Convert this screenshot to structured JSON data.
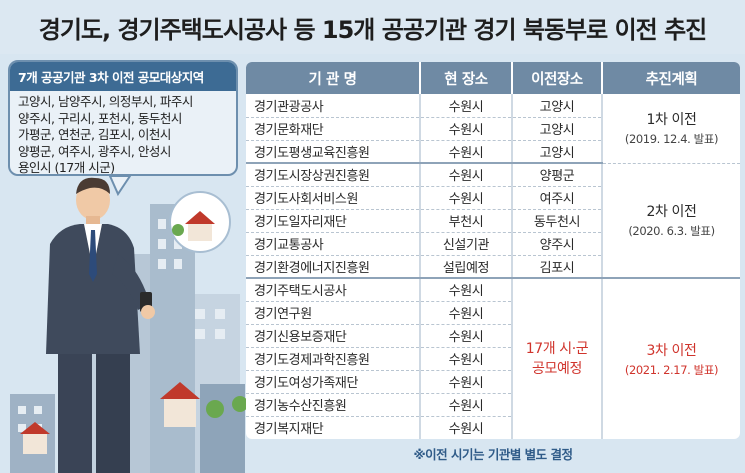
{
  "title": "경기도, 경기주택도시공사 등 15개 공공기관 경기 북동부로 이전 추진",
  "region_box": {
    "title": "7개 공공기관 3차 이전 공모대상지역",
    "lines": [
      "고양시, 남양주시, 의정부시, 파주시",
      "양주시, 구리시, 포천시, 동두천시",
      "가평군, 연천군, 김포시, 이천시",
      "양평군, 여주시, 광주시, 안성시",
      "용인시 (17개 시군)"
    ]
  },
  "table": {
    "headers": [
      "기 관 명",
      "현 장소",
      "이전장소",
      "추진계획"
    ],
    "groups": [
      {
        "rows": [
          {
            "name": "경기관광공사",
            "current": "수원시",
            "target": "고양시"
          },
          {
            "name": "경기문화재단",
            "current": "수원시",
            "target": "고양시"
          },
          {
            "name": "경기도평생교육진흥원",
            "current": "수원시",
            "target": "고양시"
          }
        ],
        "plan": "1차 이전",
        "plan_date": "(2019. 12.4. 발표)"
      },
      {
        "rows": [
          {
            "name": "경기도시장상권진흥원",
            "current": "수원시",
            "target": "양평군"
          },
          {
            "name": "경기도사회서비스원",
            "current": "수원시",
            "target": "여주시"
          },
          {
            "name": "경기도일자리재단",
            "current": "부천시",
            "target": "동두천시"
          },
          {
            "name": "경기교통공사",
            "current": "신설기관",
            "target": "양주시"
          },
          {
            "name": "경기환경에너지진흥원",
            "current": "설립예정",
            "target": "김포시"
          }
        ],
        "plan": "2차 이전",
        "plan_date": "(2020. 6.3. 발표)"
      },
      {
        "rows": [
          {
            "name": "경기주택도시공사",
            "current": "수원시"
          },
          {
            "name": "경기연구원",
            "current": "수원시"
          },
          {
            "name": "경기신용보증재단",
            "current": "수원시"
          },
          {
            "name": "경기도경제과학진흥원",
            "current": "수원시"
          },
          {
            "name": "경기도여성가족재단",
            "current": "수원시"
          },
          {
            "name": "경기농수산진흥원",
            "current": "수원시"
          },
          {
            "name": "경기복지재단",
            "current": "수원시"
          }
        ],
        "target_line1": "17개 시·군",
        "target_line2": "공모예정",
        "plan": "3차 이전",
        "plan_date": "(2021. 2.17. 발표)"
      }
    ]
  },
  "footnote": "※이전 시기는 기관별 별도 결정",
  "colors": {
    "background": "#d8e6f1",
    "header": "#6f8aa4",
    "accent_red": "#d0342c",
    "region_title": "#3d6b94"
  }
}
